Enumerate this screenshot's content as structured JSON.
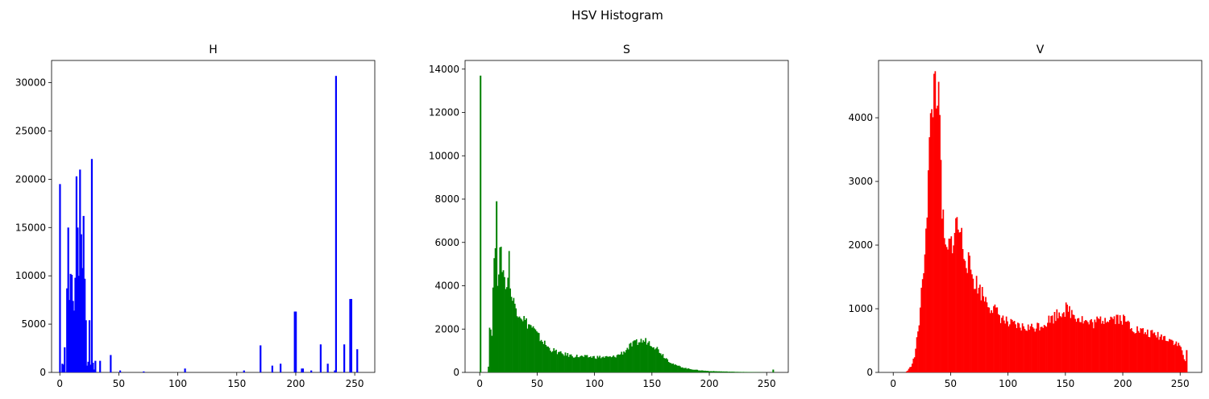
{
  "figure": {
    "suptitle": "HSV Histogram"
  },
  "chart_data": [
    {
      "type": "bar",
      "title": "H",
      "color": "#0000ff",
      "xlim": [
        -7,
        267
      ],
      "ylim": [
        0,
        32300
      ],
      "xticks": [
        0,
        50,
        100,
        150,
        200,
        250
      ],
      "yticks": [
        0,
        5000,
        10000,
        15000,
        20000,
        25000,
        30000
      ],
      "x": [
        0,
        2,
        3,
        4,
        6,
        7,
        8,
        9,
        10,
        11,
        12,
        13,
        14,
        15,
        16,
        17,
        18,
        19,
        20,
        21,
        22,
        23,
        24,
        25,
        26,
        27,
        28,
        29,
        30,
        34,
        43,
        51,
        71,
        106,
        156,
        170,
        180,
        187,
        199,
        200,
        205,
        206,
        213,
        221,
        227,
        233,
        234,
        241,
        246,
        247,
        252
      ],
      "values": [
        19500,
        900,
        800,
        2600,
        8700,
        15000,
        7500,
        10200,
        10100,
        7400,
        6400,
        9800,
        20300,
        15000,
        10000,
        21000,
        14300,
        10800,
        16200,
        9700,
        5400,
        700,
        1100,
        5400,
        800,
        22100,
        1000,
        300,
        1200,
        1200,
        1800,
        200,
        100,
        400,
        200,
        2800,
        700,
        900,
        6300,
        6300,
        400,
        400,
        200,
        2900,
        900,
        200,
        30700,
        2900,
        7600,
        7600,
        2400
      ]
    },
    {
      "type": "bar",
      "title": "S",
      "color": "#008000",
      "xlim": [
        -12.8,
        268.8
      ],
      "ylim": [
        0,
        14400
      ],
      "xticks": [
        0,
        50,
        100,
        150,
        200,
        250
      ],
      "yticks": [
        0,
        2000,
        4000,
        6000,
        8000,
        10000,
        12000,
        14000
      ],
      "spikes": [
        {
          "x": 0,
          "y": 13700
        },
        {
          "x": 14,
          "y": 7900
        },
        {
          "x": 255,
          "y": 130
        }
      ],
      "points": [
        [
          7,
          300
        ],
        [
          8,
          2100
        ],
        [
          10,
          1900
        ],
        [
          12,
          5500
        ],
        [
          15,
          4500
        ],
        [
          17,
          5300
        ],
        [
          19,
          5100
        ],
        [
          21,
          4300
        ],
        [
          23,
          4000
        ],
        [
          25,
          5200
        ],
        [
          27,
          3500
        ],
        [
          30,
          3100
        ],
        [
          35,
          2700
        ],
        [
          40,
          2300
        ],
        [
          45,
          2100
        ],
        [
          50,
          1700
        ],
        [
          55,
          1400
        ],
        [
          60,
          1100
        ],
        [
          70,
          870
        ],
        [
          80,
          770
        ],
        [
          90,
          720
        ],
        [
          100,
          710
        ],
        [
          110,
          700
        ],
        [
          115,
          700
        ],
        [
          120,
          800
        ],
        [
          125,
          950
        ],
        [
          130,
          1200
        ],
        [
          135,
          1350
        ],
        [
          140,
          1450
        ],
        [
          145,
          1450
        ],
        [
          150,
          1300
        ],
        [
          155,
          1050
        ],
        [
          160,
          750
        ],
        [
          165,
          500
        ],
        [
          170,
          330
        ],
        [
          180,
          180
        ],
        [
          190,
          100
        ],
        [
          200,
          60
        ],
        [
          220,
          30
        ],
        [
          250,
          0
        ]
      ]
    },
    {
      "type": "bar",
      "title": "V",
      "color": "#ff0000",
      "xlim": [
        -12.8,
        268.8
      ],
      "ylim": [
        0,
        4900
      ],
      "xticks": [
        0,
        50,
        100,
        150,
        200,
        250
      ],
      "yticks": [
        0,
        1000,
        2000,
        3000,
        4000
      ],
      "spikes": [
        {
          "x": 255,
          "y": 350
        }
      ],
      "points": [
        [
          10,
          0
        ],
        [
          12,
          30
        ],
        [
          15,
          100
        ],
        [
          18,
          250
        ],
        [
          20,
          500
        ],
        [
          22,
          800
        ],
        [
          25,
          1400
        ],
        [
          28,
          2300
        ],
        [
          30,
          3100
        ],
        [
          32,
          3800
        ],
        [
          34,
          4300
        ],
        [
          36,
          4650
        ],
        [
          38,
          4500
        ],
        [
          40,
          3700
        ],
        [
          42,
          2600
        ],
        [
          44,
          2000
        ],
        [
          46,
          1850
        ],
        [
          50,
          2050
        ],
        [
          53,
          2200
        ],
        [
          55,
          2350
        ],
        [
          58,
          2200
        ],
        [
          60,
          2000
        ],
        [
          65,
          1700
        ],
        [
          70,
          1450
        ],
        [
          75,
          1300
        ],
        [
          80,
          1150
        ],
        [
          85,
          1030
        ],
        [
          90,
          930
        ],
        [
          95,
          840
        ],
        [
          100,
          760
        ],
        [
          110,
          710
        ],
        [
          120,
          700
        ],
        [
          130,
          760
        ],
        [
          140,
          880
        ],
        [
          145,
          960
        ],
        [
          150,
          990
        ],
        [
          155,
          940
        ],
        [
          160,
          880
        ],
        [
          165,
          820
        ],
        [
          170,
          770
        ],
        [
          175,
          780
        ],
        [
          180,
          820
        ],
        [
          185,
          860
        ],
        [
          190,
          860
        ],
        [
          195,
          860
        ],
        [
          200,
          830
        ],
        [
          205,
          760
        ],
        [
          210,
          680
        ],
        [
          220,
          620
        ],
        [
          230,
          580
        ],
        [
          240,
          530
        ],
        [
          245,
          470
        ],
        [
          250,
          400
        ],
        [
          254,
          160
        ],
        [
          255,
          120
        ]
      ]
    }
  ]
}
